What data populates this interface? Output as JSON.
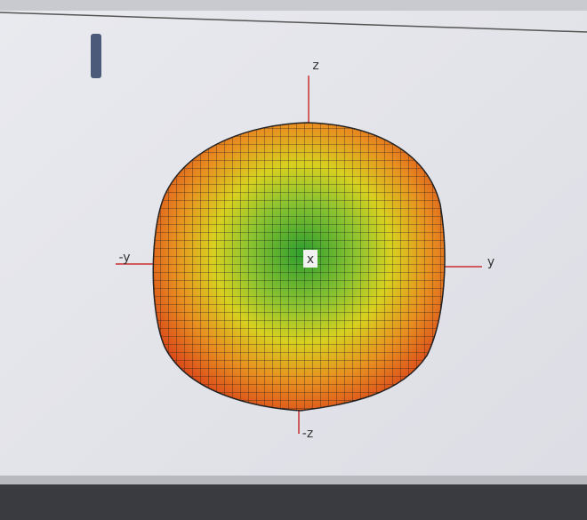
{
  "axes": {
    "z": "z",
    "neg_y": "-y",
    "y": "y",
    "x": "x",
    "neg_z": "-z"
  }
}
